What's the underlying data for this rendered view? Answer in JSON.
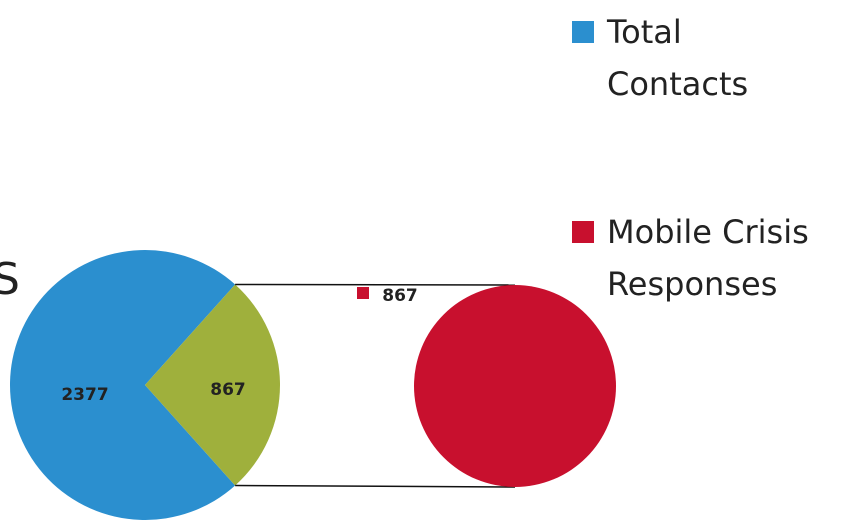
{
  "chart_data": {
    "type": "pie_of_pie",
    "annotation": "S",
    "main": {
      "values": [
        2377,
        867
      ],
      "colors": [
        "#2b8fcf",
        "#9fb03c"
      ]
    },
    "secondary": {
      "values": [
        867
      ],
      "colors": [
        "#c8102e"
      ]
    },
    "legend": [
      {
        "name": "Total Contacts",
        "color": "#2b8fcf"
      },
      {
        "name": "Mobile Crisis Responses",
        "color": "#c8102e"
      }
    ]
  }
}
